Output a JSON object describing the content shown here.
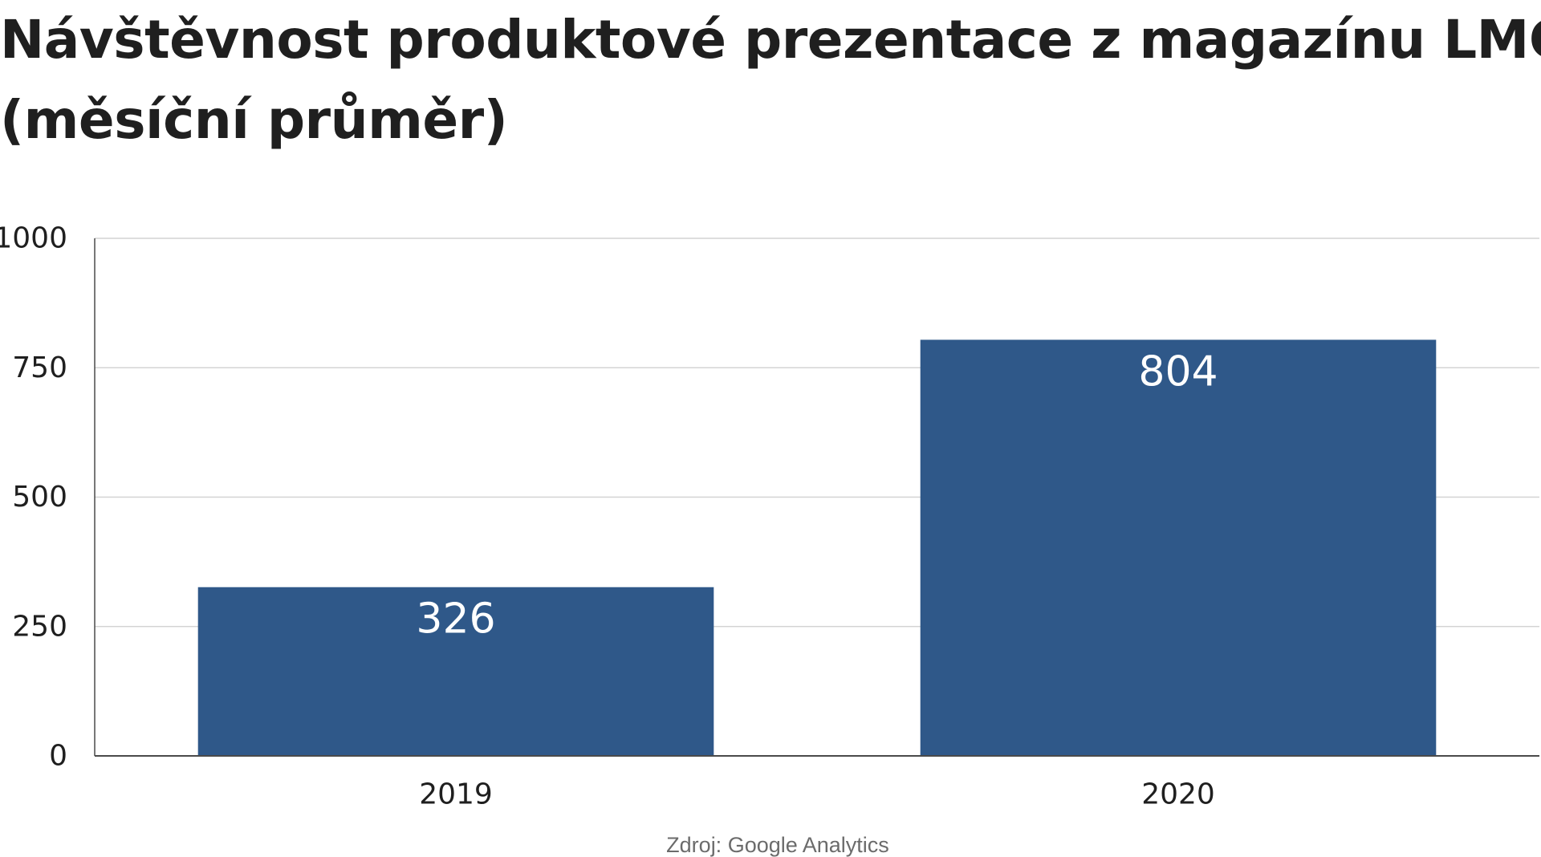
{
  "chart_data": {
    "type": "bar",
    "title_lines": [
      "Návštěvnost produktové prezentace z magazínu LMC",
      "(měsíční průměr)"
    ],
    "categories": [
      "2019",
      "2020"
    ],
    "values": [
      326,
      804
    ],
    "data_labels": [
      "326",
      "804"
    ],
    "ylim": [
      0,
      1000
    ],
    "yticks": [
      0,
      250,
      500,
      750,
      1000
    ],
    "ytick_labels": [
      "0",
      "250",
      "500",
      "750",
      "1000"
    ],
    "xlabel": "",
    "ylabel": "",
    "grid": true,
    "legend": "none",
    "bar_color": "#2f5889",
    "source": "Zdroj: Google Analytics"
  }
}
